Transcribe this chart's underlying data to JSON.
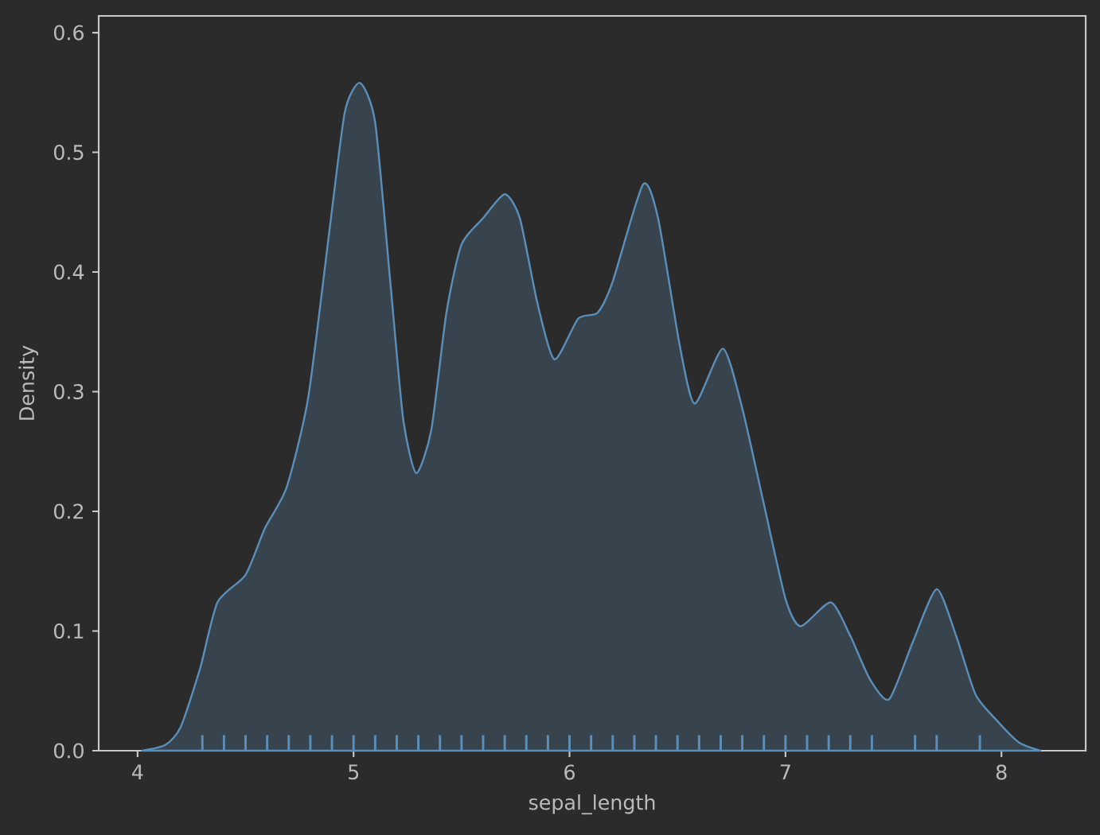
{
  "chart_data": {
    "type": "area",
    "xlabel": "sepal_length",
    "ylabel": "Density",
    "xlim": [
      3.82,
      8.39
    ],
    "ylim": [
      0,
      0.614
    ],
    "xticks": [
      4,
      5,
      6,
      7,
      8
    ],
    "yticks": [
      {
        "value": 0,
        "label": "0.0"
      },
      {
        "value": 0.1,
        "label": "0.1"
      },
      {
        "value": 0.2,
        "label": "0.2"
      },
      {
        "value": 0.3,
        "label": "0.3"
      },
      {
        "value": 0.4,
        "label": "0.4"
      },
      {
        "value": 0.5,
        "label": "0.5"
      },
      {
        "value": 0.6,
        "label": "0.6"
      }
    ],
    "series": [
      {
        "color": "#5b8fb9",
        "x": [
          4.02,
          4.13,
          4.2,
          4.29,
          4.37,
          4.5,
          4.59,
          4.69,
          4.79,
          4.89,
          4.96,
          5.03,
          5.1,
          5.17,
          5.23,
          5.29,
          5.36,
          5.43,
          5.5,
          5.6,
          5.7,
          5.77,
          5.85,
          5.93,
          6.04,
          6.13,
          6.2,
          6.34,
          6.41,
          6.51,
          6.58,
          6.71,
          6.8,
          6.9,
          7.0,
          7.07,
          7.21,
          7.3,
          7.39,
          7.48,
          7.59,
          7.7,
          7.79,
          7.88,
          7.98,
          8.08,
          8.18
        ],
        "values": [
          0.0,
          0.005,
          0.02,
          0.069,
          0.124,
          0.147,
          0.186,
          0.22,
          0.295,
          0.437,
          0.534,
          0.558,
          0.525,
          0.392,
          0.277,
          0.232,
          0.268,
          0.366,
          0.423,
          0.445,
          0.465,
          0.445,
          0.375,
          0.327,
          0.361,
          0.366,
          0.392,
          0.473,
          0.445,
          0.339,
          0.29,
          0.336,
          0.286,
          0.206,
          0.127,
          0.104,
          0.124,
          0.096,
          0.06,
          0.043,
          0.091,
          0.135,
          0.096,
          0.047,
          0.025,
          0.007,
          0.0
        ]
      },
      {
        "type": "bar",
        "color": "#5b8fb9",
        "x": [
          4.3,
          4.4,
          4.5,
          4.6,
          4.7,
          4.8,
          4.9,
          5.0,
          5.1,
          5.2,
          5.3,
          5.4,
          5.5,
          5.6,
          5.7,
          5.8,
          5.9,
          6.0,
          6.1,
          6.2,
          6.3,
          6.4,
          6.5,
          6.6,
          6.7,
          6.8,
          6.9,
          7.0,
          7.1,
          7.2,
          7.3,
          7.4,
          7.6,
          7.7,
          7.9
        ],
        "values": [
          0.013,
          0.013,
          0.013,
          0.013,
          0.013,
          0.013,
          0.013,
          0.013,
          0.013,
          0.013,
          0.013,
          0.013,
          0.013,
          0.013,
          0.013,
          0.013,
          0.013,
          0.013,
          0.013,
          0.013,
          0.013,
          0.013,
          0.013,
          0.013,
          0.013,
          0.013,
          0.013,
          0.013,
          0.013,
          0.013,
          0.013,
          0.013,
          0.013,
          0.013,
          0.013
        ]
      }
    ]
  }
}
